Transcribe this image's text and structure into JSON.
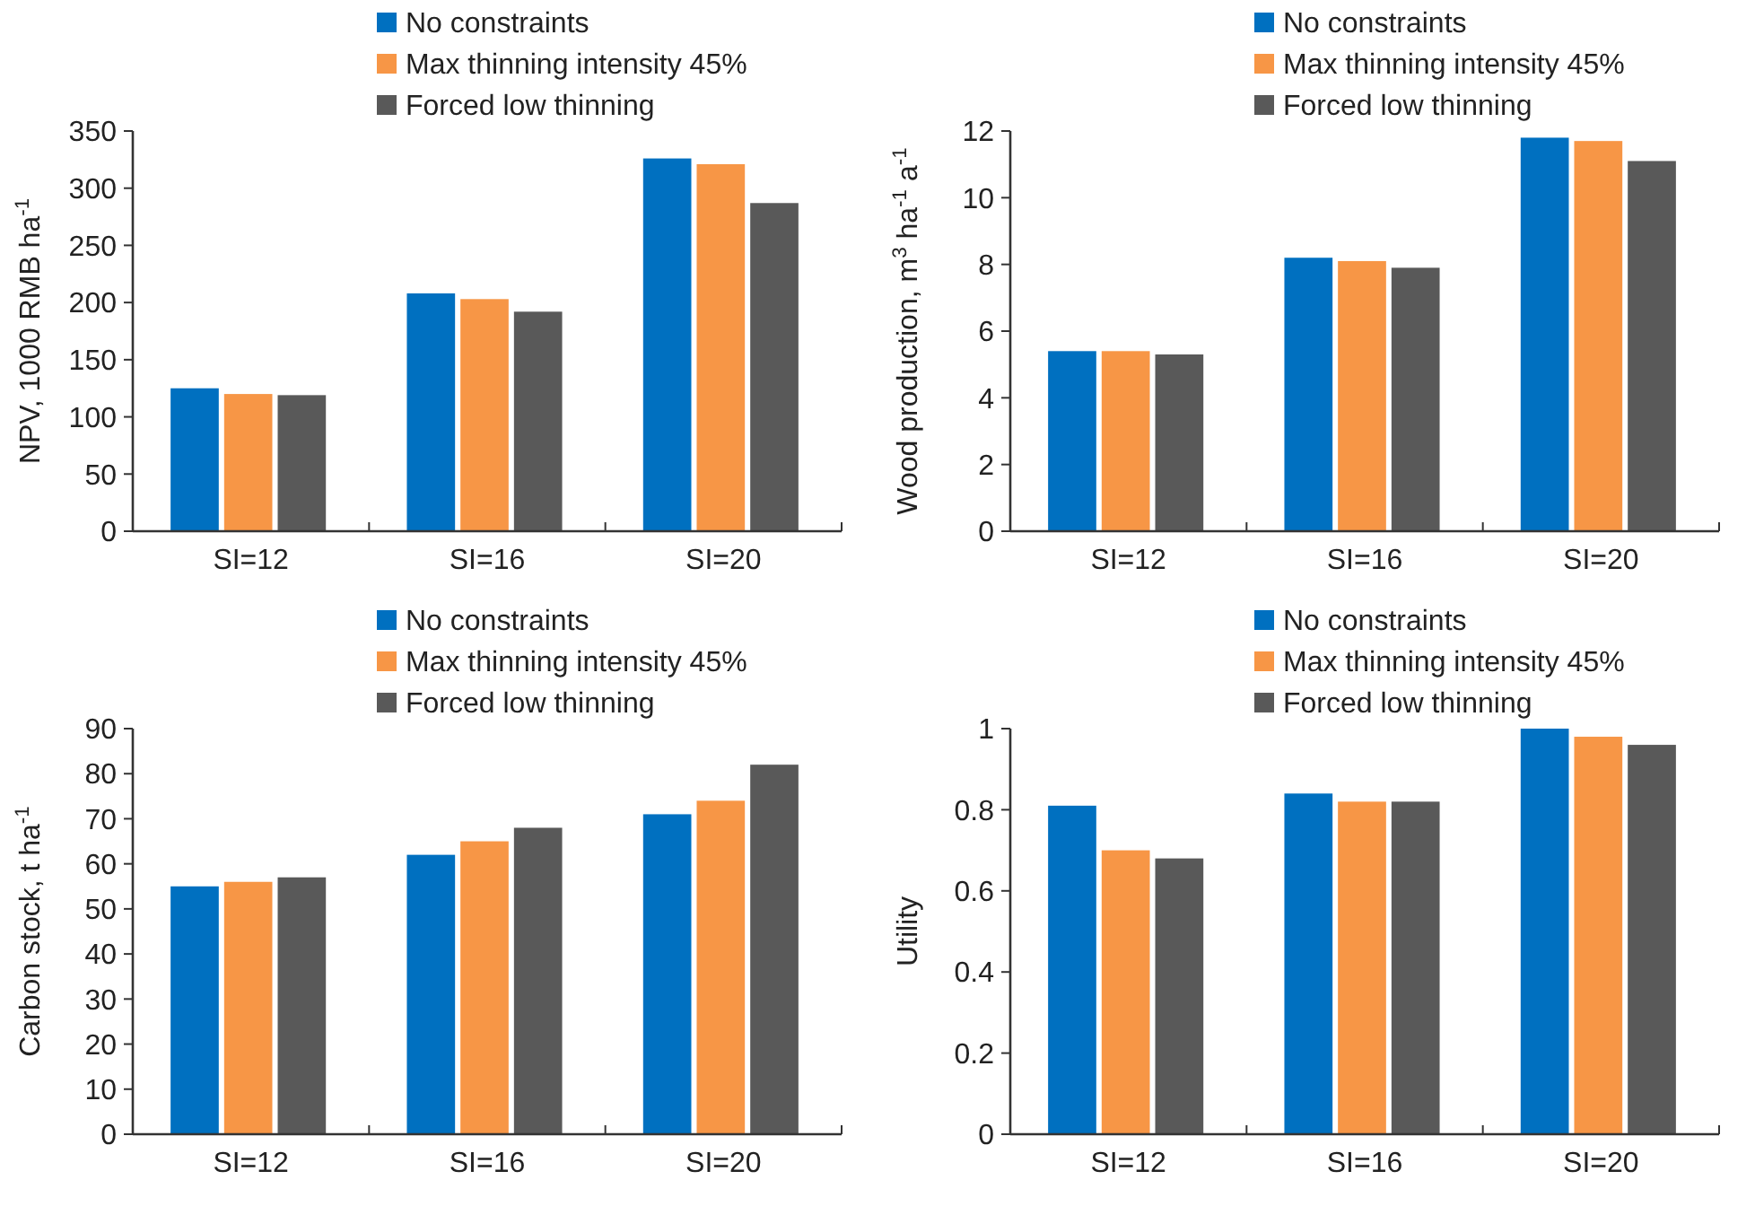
{
  "chart_data": [
    {
      "type": "bar",
      "categories": [
        "SI=12",
        "SI=16",
        "SI=20"
      ],
      "ylabel": "NPV, 1000 RMB ha$^{-1}$",
      "ylim": [
        0,
        350
      ],
      "yticks": [
        0,
        50,
        100,
        150,
        200,
        250,
        300,
        350
      ],
      "legend": "top",
      "series": [
        {
          "name": "No constraints",
          "color": "#0070c0",
          "values": [
            125,
            208,
            326
          ]
        },
        {
          "name": "Max thinning intensity 45%",
          "color": "#f79646",
          "values": [
            120,
            203,
            321
          ]
        },
        {
          "name": "Forced low thinning",
          "color": "#595959",
          "values": [
            119,
            192,
            287
          ]
        }
      ]
    },
    {
      "type": "bar",
      "categories": [
        "SI=12",
        "SI=16",
        "SI=20"
      ],
      "ylabel": "Wood production, m$^{3}$ ha$^{-1}$ a$^{-1}$",
      "ylim": [
        0,
        12
      ],
      "yticks": [
        0,
        2,
        4,
        6,
        8,
        10,
        12
      ],
      "legend": "top",
      "series": [
        {
          "name": "No constraints",
          "color": "#0070c0",
          "values": [
            5.4,
            8.2,
            11.8
          ]
        },
        {
          "name": "Max thinning intensity 45%",
          "color": "#f79646",
          "values": [
            5.4,
            8.1,
            11.7
          ]
        },
        {
          "name": "Forced low thinning",
          "color": "#595959",
          "values": [
            5.3,
            7.9,
            11.1
          ]
        }
      ]
    },
    {
      "type": "bar",
      "categories": [
        "SI=12",
        "SI=16",
        "SI=20"
      ],
      "ylabel": "Carbon stock, t ha$^{-1}$",
      "ylim": [
        0,
        90
      ],
      "yticks": [
        0,
        10,
        20,
        30,
        40,
        50,
        60,
        70,
        80,
        90
      ],
      "legend": "top",
      "series": [
        {
          "name": "No constraints",
          "color": "#0070c0",
          "values": [
            55,
            62,
            71
          ]
        },
        {
          "name": "Max thinning intensity 45%",
          "color": "#f79646",
          "values": [
            56,
            65,
            74
          ]
        },
        {
          "name": "Forced low thinning",
          "color": "#595959",
          "values": [
            57,
            68,
            82
          ]
        }
      ]
    },
    {
      "type": "bar",
      "categories": [
        "SI=12",
        "SI=16",
        "SI=20"
      ],
      "ylabel": "Utility",
      "ylim": [
        0,
        1
      ],
      "yticks": [
        0,
        0.2,
        0.4,
        0.6,
        0.8,
        1
      ],
      "legend": "top",
      "series": [
        {
          "name": "No constraints",
          "color": "#0070c0",
          "values": [
            0.81,
            0.84,
            1.0
          ]
        },
        {
          "name": "Max thinning intensity 45%",
          "color": "#f79646",
          "values": [
            0.7,
            0.82,
            0.98
          ]
        },
        {
          "name": "Forced low thinning",
          "color": "#595959",
          "values": [
            0.68,
            0.82,
            0.96
          ]
        }
      ]
    }
  ]
}
